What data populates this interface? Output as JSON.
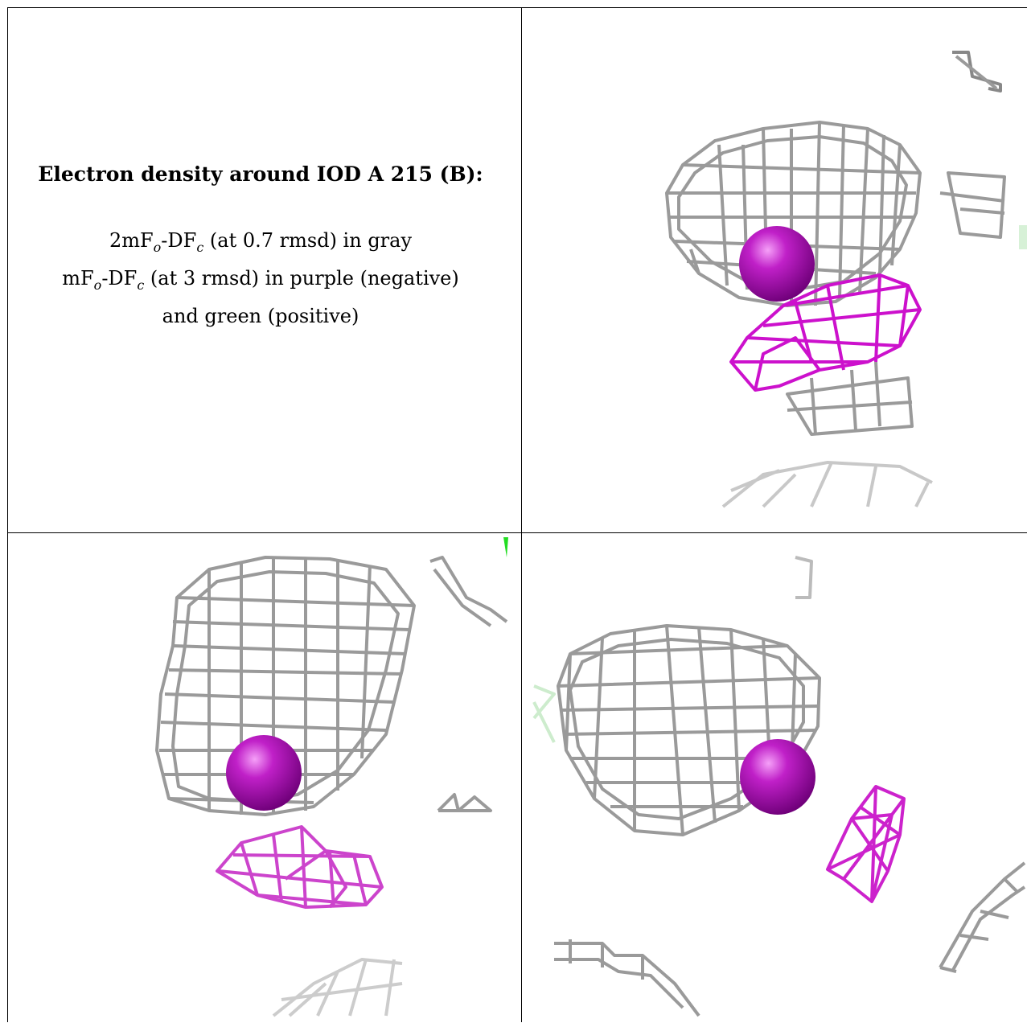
{
  "caption": {
    "title": "Electron density around IOD A 215 (B):",
    "line1_pre": "2mF",
    "line1_sub1": "o",
    "line1_mid": "-DF",
    "line1_sub2": "c",
    "line1_post": " (at 0.7 rmsd) in gray",
    "line2_pre": "mF",
    "line2_sub1": "o",
    "line2_mid": "-DF",
    "line2_sub2": "c",
    "line2_post": " (at 3 rmsd) in purple (negative)",
    "line3": "and green (positive)"
  },
  "colors": {
    "map_2fofc": "#9a9a9a",
    "map_fofc_negative": "#cc11cc",
    "map_fofc_positive": "#22dd22",
    "atom": "#a010a8"
  }
}
